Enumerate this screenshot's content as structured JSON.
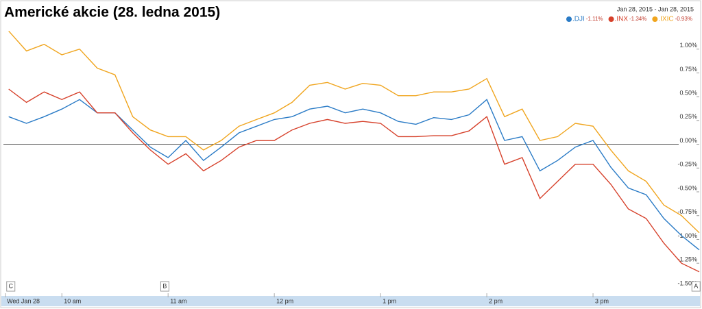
{
  "chart_data": {
    "type": "line",
    "title": "Americké akcie (28. ledna 2015)",
    "date_range": "Jan 28, 2015 - Jan 28, 2015",
    "x": [
      9.5,
      9.667,
      9.833,
      10,
      10.167,
      10.333,
      10.5,
      10.667,
      10.833,
      11,
      11.167,
      11.333,
      11.5,
      11.667,
      11.833,
      12,
      12.167,
      12.333,
      12.5,
      12.667,
      12.833,
      13,
      13.167,
      13.333,
      13.5,
      13.667,
      13.833,
      14,
      14.167,
      14.333,
      14.5,
      14.667,
      14.833,
      15,
      15.167,
      15.333,
      15.5,
      15.667,
      15.833,
      16
    ],
    "series": [
      {
        "name": ".DJI",
        "change": "-1.11%",
        "color": "#2a7bc6",
        "values": [
          0.29,
          0.22,
          0.29,
          0.37,
          0.47,
          0.33,
          0.33,
          0.15,
          -0.03,
          -0.14,
          0.04,
          -0.17,
          -0.03,
          0.12,
          0.19,
          0.26,
          0.29,
          0.37,
          0.4,
          0.33,
          0.37,
          0.33,
          0.24,
          0.21,
          0.28,
          0.26,
          0.31,
          0.47,
          0.04,
          0.08,
          -0.28,
          -0.17,
          -0.03,
          0.04,
          -0.24,
          -0.46,
          -0.53,
          -0.78,
          -0.96,
          -1.11
        ]
      },
      {
        "name": ".INX",
        "change": "-1.34%",
        "color": "#d6402a",
        "values": [
          0.58,
          0.44,
          0.55,
          0.47,
          0.55,
          0.33,
          0.33,
          0.12,
          -0.06,
          -0.21,
          -0.1,
          -0.28,
          -0.17,
          -0.03,
          0.04,
          0.04,
          0.15,
          0.22,
          0.26,
          0.22,
          0.24,
          0.22,
          0.08,
          0.08,
          0.09,
          0.09,
          0.14,
          0.29,
          -0.21,
          -0.14,
          -0.57,
          -0.39,
          -0.21,
          -0.21,
          -0.42,
          -0.68,
          -0.78,
          -1.04,
          -1.25,
          -1.34
        ]
      },
      {
        "name": ".IXIC",
        "change": "-0.93%",
        "color": "#f0a51e",
        "values": [
          1.19,
          0.98,
          1.05,
          0.94,
          1.0,
          0.8,
          0.73,
          0.29,
          0.15,
          0.08,
          0.08,
          -0.06,
          0.04,
          0.19,
          0.26,
          0.33,
          0.44,
          0.62,
          0.65,
          0.58,
          0.64,
          0.62,
          0.51,
          0.51,
          0.55,
          0.55,
          0.58,
          0.69,
          0.29,
          0.37,
          0.04,
          0.08,
          0.22,
          0.19,
          -0.06,
          -0.28,
          -0.39,
          -0.64,
          -0.75,
          -0.93
        ]
      }
    ],
    "xlim": [
      9.45,
      16
    ],
    "xticks": [
      {
        "value": 9.47,
        "label": "Wed Jan 28"
      },
      {
        "value": 10,
        "label": "10 am"
      },
      {
        "value": 11,
        "label": "11 am"
      },
      {
        "value": 12,
        "label": "12 pm"
      },
      {
        "value": 13,
        "label": "1 pm"
      },
      {
        "value": 14,
        "label": "2 pm"
      },
      {
        "value": 15,
        "label": "3 pm"
      }
    ],
    "ylim": [
      -1.58,
      1.48
    ],
    "yticks": [
      {
        "value": 1,
        "label": "1.00%"
      },
      {
        "value": 0.75,
        "label": "0.75%"
      },
      {
        "value": 0.5,
        "label": "0.50%"
      },
      {
        "value": 0.25,
        "label": "0.25%"
      },
      {
        "value": 0,
        "label": "0.00%"
      },
      {
        "value": -0.25,
        "label": "-0.25%"
      },
      {
        "value": -0.5,
        "label": "-0.50%"
      },
      {
        "value": -0.75,
        "label": "-0.75%"
      },
      {
        "value": -1,
        "label": "-1.00%"
      },
      {
        "value": -1.25,
        "label": "-1.25%"
      },
      {
        "value": -1.5,
        "label": "-1.50%"
      }
    ],
    "zero_line": true,
    "annotations": [
      {
        "label": "C",
        "x": 9.5
      },
      {
        "label": "B",
        "x": 10.95
      },
      {
        "label": "A",
        "x": 15.95
      }
    ]
  }
}
